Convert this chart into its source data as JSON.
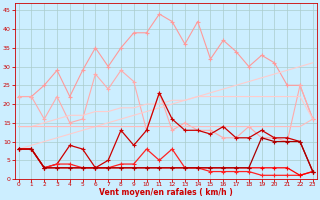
{
  "x": [
    0,
    1,
    2,
    3,
    4,
    5,
    6,
    7,
    8,
    9,
    10,
    11,
    12,
    13,
    14,
    15,
    16,
    17,
    18,
    19,
    20,
    21,
    22,
    23
  ],
  "series": [
    {
      "color": "#ff9999",
      "linewidth": 0.8,
      "marker": "+",
      "markersize": 2.5,
      "values": [
        22,
        22,
        25,
        29,
        22,
        29,
        35,
        30,
        35,
        39,
        39,
        44,
        42,
        36,
        42,
        32,
        37,
        34,
        30,
        33,
        31,
        25,
        25,
        16
      ]
    },
    {
      "color": "#ffaaaa",
      "linewidth": 0.8,
      "marker": "+",
      "markersize": 2.5,
      "values": [
        22,
        22,
        16,
        22,
        15,
        16,
        28,
        24,
        29,
        26,
        13,
        23,
        13,
        15,
        13,
        13,
        11,
        11,
        14,
        11,
        11,
        10,
        25,
        16
      ]
    },
    {
      "color": "#ffcccc",
      "linewidth": 0.8,
      "marker": null,
      "markersize": 0,
      "values": [
        8,
        9,
        10,
        11,
        12,
        13,
        14,
        15,
        16,
        17,
        18,
        19,
        20,
        21,
        22,
        23,
        24,
        25,
        26,
        27,
        28,
        29,
        30,
        31
      ]
    },
    {
      "color": "#ffcccc",
      "linewidth": 0.8,
      "marker": null,
      "markersize": 0,
      "values": [
        14,
        14,
        15,
        16,
        17,
        17,
        18,
        18,
        19,
        19,
        20,
        20,
        21,
        21,
        22,
        22,
        22,
        22,
        22,
        22,
        22,
        22,
        22,
        16
      ]
    },
    {
      "color": "#ffbbbb",
      "linewidth": 0.8,
      "marker": null,
      "markersize": 0,
      "values": [
        14,
        14,
        14,
        14,
        14,
        14,
        14,
        14,
        14,
        14,
        14,
        14,
        14,
        14,
        14,
        14,
        14,
        14,
        14,
        14,
        14,
        14,
        14,
        16
      ]
    },
    {
      "color": "#cc0000",
      "linewidth": 0.9,
      "marker": "+",
      "markersize": 2.5,
      "values": [
        8,
        8,
        3,
        4,
        9,
        8,
        3,
        5,
        13,
        9,
        13,
        23,
        16,
        13,
        13,
        12,
        14,
        11,
        11,
        13,
        11,
        11,
        10,
        2
      ]
    },
    {
      "color": "#ff2222",
      "linewidth": 0.9,
      "marker": "+",
      "markersize": 2.5,
      "values": [
        8,
        8,
        3,
        4,
        4,
        3,
        3,
        3,
        4,
        4,
        8,
        5,
        8,
        3,
        3,
        2,
        2,
        2,
        2,
        1,
        1,
        1,
        1,
        2
      ]
    },
    {
      "color": "#ff0000",
      "linewidth": 0.9,
      "marker": "+",
      "markersize": 2.5,
      "values": [
        8,
        8,
        3,
        3,
        3,
        3,
        3,
        3,
        3,
        3,
        3,
        3,
        3,
        3,
        3,
        3,
        3,
        3,
        3,
        3,
        3,
        3,
        1,
        2
      ]
    },
    {
      "color": "#aa0000",
      "linewidth": 0.9,
      "marker": "+",
      "markersize": 2.5,
      "values": [
        8,
        8,
        3,
        3,
        3,
        3,
        3,
        3,
        3,
        3,
        3,
        3,
        3,
        3,
        3,
        3,
        3,
        3,
        3,
        11,
        10,
        10,
        10,
        2
      ]
    }
  ],
  "xlim": [
    -0.3,
    23.3
  ],
  "ylim": [
    0,
    47
  ],
  "yticks": [
    0,
    5,
    10,
    15,
    20,
    25,
    30,
    35,
    40,
    45
  ],
  "xticks": [
    0,
    1,
    2,
    3,
    4,
    5,
    6,
    7,
    8,
    9,
    10,
    11,
    12,
    13,
    14,
    15,
    16,
    17,
    18,
    19,
    20,
    21,
    22,
    23
  ],
  "xlabel": "Vent moyen/en rafales ( km/h )",
  "bg_color": "#cceeff",
  "grid_color": "#aacccc",
  "xlabel_color": "#cc0000",
  "tick_color": "#cc0000",
  "axis_color": "#cc0000",
  "figsize": [
    3.2,
    2.0
  ],
  "dpi": 100
}
